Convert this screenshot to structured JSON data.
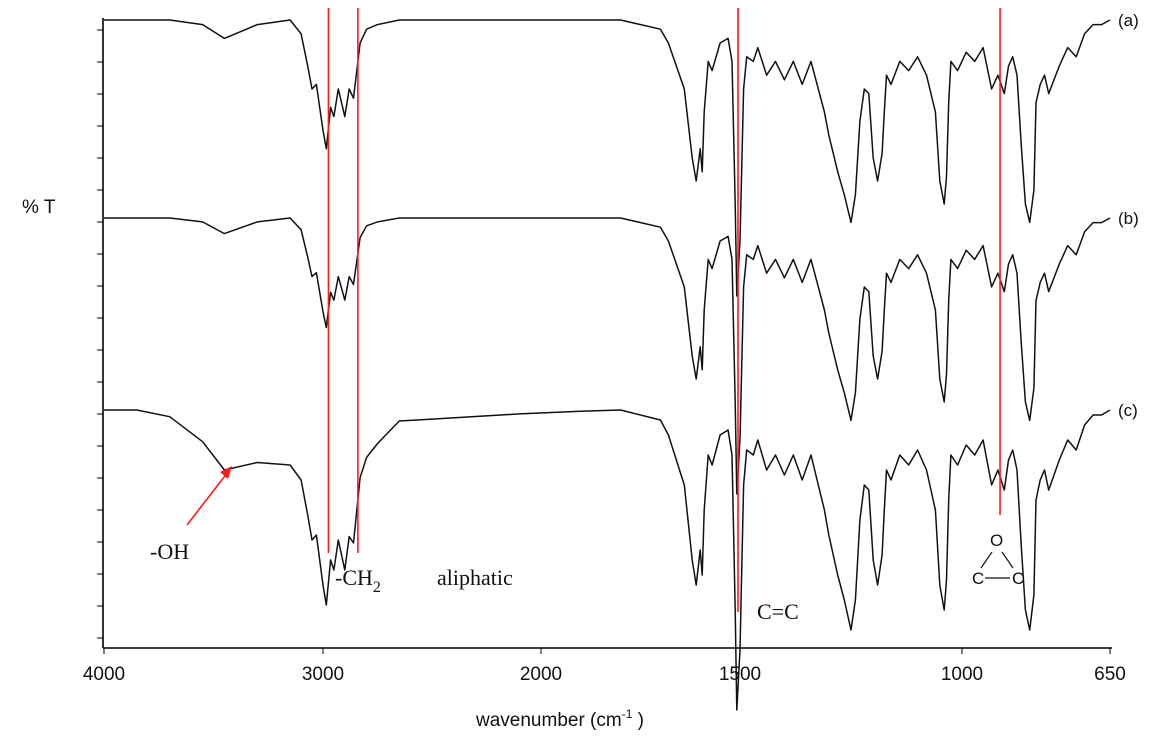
{
  "chart_data": {
    "type": "line",
    "ylabel": "% T",
    "xlabel_main": "wavenumber (cm",
    "xlabel_sup": "-1",
    "xlabel_close": " )",
    "xlim": [
      4000,
      650
    ],
    "x_reversed": true,
    "x_ticks": [
      4000,
      3000,
      2000,
      1500,
      1000,
      650
    ],
    "grid": false,
    "series": [
      {
        "name": "(a)",
        "x": [
          4000,
          3850,
          3700,
          3550,
          3450,
          3300,
          3150,
          3100,
          3070,
          3050,
          3030,
          3000,
          2985,
          2965,
          2950,
          2930,
          2900,
          2880,
          2860,
          2850,
          2830,
          2800,
          2750,
          2650,
          2500,
          2300,
          2100,
          1900,
          1800,
          1700,
          1680,
          1640,
          1620,
          1610,
          1600,
          1595,
          1590,
          1580,
          1570,
          1550,
          1530,
          1520,
          1512,
          1508,
          1500,
          1492,
          1485,
          1470,
          1460,
          1440,
          1420,
          1400,
          1380,
          1360,
          1340,
          1310,
          1300,
          1280,
          1265,
          1250,
          1240,
          1230,
          1220,
          1210,
          1200,
          1190,
          1180,
          1175,
          1170,
          1160,
          1140,
          1120,
          1100,
          1080,
          1060,
          1050,
          1040,
          1035,
          1030,
          1025,
          1010,
          990,
          970,
          950,
          930,
          915,
          900,
          890,
          880,
          870,
          860,
          850,
          840,
          830,
          825,
          815,
          805,
          795,
          770,
          750,
          730,
          710,
          690,
          670,
          650
        ],
        "y": [
          0,
          0,
          0,
          -1,
          -4,
          -1,
          0,
          -3,
          -10,
          -15,
          -14,
          -24,
          -28,
          -19,
          -21,
          -15,
          -21,
          -15,
          -17,
          -13,
          -5,
          -2,
          -1,
          0,
          0,
          0,
          0,
          0,
          0,
          -2,
          -5,
          -15,
          -30,
          -35,
          -28,
          -33,
          -20,
          -9,
          -11,
          -5,
          -4,
          -9,
          -40,
          -60,
          -48,
          -15,
          -8,
          -9,
          -6,
          -12,
          -9,
          -13,
          -9,
          -14,
          -9,
          -20,
          -25,
          -33,
          -38,
          -44,
          -38,
          -22,
          -15,
          -16,
          -30,
          -35,
          -29,
          -20,
          -12,
          -14,
          -9,
          -11,
          -8,
          -12,
          -20,
          -35,
          -40,
          -34,
          -18,
          -9,
          -11,
          -7,
          -9,
          -6,
          -15,
          -12,
          -16,
          -10,
          -8,
          -12,
          -27,
          -40,
          -44,
          -37,
          -18,
          -14,
          -12,
          -16,
          -10,
          -6,
          -8,
          -3,
          -1,
          -1,
          0
        ]
      },
      {
        "name": "(b)",
        "x": [
          4000,
          3850,
          3700,
          3550,
          3450,
          3300,
          3150,
          3100,
          3070,
          3050,
          3030,
          3000,
          2985,
          2965,
          2950,
          2930,
          2900,
          2880,
          2860,
          2850,
          2830,
          2800,
          2750,
          2650,
          2500,
          2300,
          2100,
          1900,
          1800,
          1700,
          1680,
          1640,
          1620,
          1610,
          1600,
          1595,
          1590,
          1580,
          1570,
          1550,
          1530,
          1520,
          1512,
          1508,
          1500,
          1492,
          1485,
          1470,
          1460,
          1440,
          1420,
          1400,
          1380,
          1360,
          1340,
          1310,
          1300,
          1280,
          1265,
          1250,
          1240,
          1230,
          1220,
          1210,
          1200,
          1190,
          1180,
          1175,
          1170,
          1160,
          1140,
          1120,
          1100,
          1080,
          1060,
          1050,
          1040,
          1035,
          1030,
          1025,
          1010,
          990,
          970,
          950,
          930,
          915,
          900,
          890,
          880,
          870,
          860,
          850,
          840,
          830,
          825,
          815,
          805,
          795,
          770,
          750,
          730,
          710,
          690,
          670,
          650
        ],
        "y": [
          0,
          0,
          0,
          -1,
          -4,
          -1,
          0,
          -3,
          -10,
          -15,
          -14,
          -24,
          -28,
          -19,
          -21,
          -15,
          -21,
          -15,
          -17,
          -13,
          -5,
          -2,
          -1,
          0,
          0,
          0,
          0,
          0,
          0,
          -2,
          -5,
          -15,
          -30,
          -35,
          -28,
          -33,
          -20,
          -9,
          -11,
          -5,
          -4,
          -9,
          -40,
          -60,
          -48,
          -15,
          -8,
          -9,
          -6,
          -12,
          -9,
          -13,
          -9,
          -14,
          -9,
          -20,
          -25,
          -33,
          -38,
          -44,
          -38,
          -22,
          -15,
          -16,
          -30,
          -35,
          -29,
          -20,
          -12,
          -14,
          -9,
          -11,
          -8,
          -12,
          -20,
          -35,
          -40,
          -34,
          -18,
          -9,
          -11,
          -7,
          -9,
          -6,
          -15,
          -12,
          -16,
          -10,
          -8,
          -12,
          -27,
          -40,
          -44,
          -37,
          -18,
          -14,
          -12,
          -16,
          -10,
          -6,
          -8,
          -3,
          -1,
          -1,
          0
        ]
      },
      {
        "name": "(c)",
        "x": [
          4000,
          3850,
          3700,
          3550,
          3450,
          3300,
          3150,
          3100,
          3070,
          3050,
          3030,
          3000,
          2985,
          2965,
          2950,
          2930,
          2900,
          2880,
          2860,
          2850,
          2830,
          2800,
          2750,
          2650,
          2500,
          2300,
          2100,
          1900,
          1800,
          1700,
          1680,
          1640,
          1620,
          1610,
          1600,
          1595,
          1590,
          1580,
          1570,
          1550,
          1530,
          1520,
          1512,
          1508,
          1500,
          1492,
          1485,
          1470,
          1460,
          1440,
          1420,
          1400,
          1380,
          1360,
          1340,
          1310,
          1300,
          1280,
          1265,
          1250,
          1240,
          1230,
          1220,
          1210,
          1200,
          1190,
          1180,
          1175,
          1170,
          1160,
          1140,
          1120,
          1100,
          1080,
          1060,
          1050,
          1040,
          1035,
          1030,
          1025,
          1010,
          990,
          970,
          950,
          930,
          915,
          900,
          890,
          880,
          870,
          860,
          850,
          840,
          830,
          825,
          815,
          805,
          795,
          770,
          750,
          730,
          710,
          690,
          670,
          650
        ],
        "y": [
          0,
          0,
          0,
          -1,
          -4,
          -1,
          0,
          -3,
          -10,
          -15,
          -14,
          -24,
          -28,
          -19,
          -21,
          -15,
          -21,
          -15,
          -17,
          -13,
          -5,
          -2,
          -1,
          0,
          0,
          0,
          0,
          0,
          0,
          -2,
          -5,
          -15,
          -30,
          -35,
          -28,
          -33,
          -20,
          -9,
          -11,
          -5,
          -4,
          -9,
          -40,
          -60,
          -48,
          -15,
          -8,
          -9,
          -6,
          -12,
          -9,
          -13,
          -9,
          -14,
          -9,
          -20,
          -25,
          -33,
          -38,
          -44,
          -38,
          -22,
          -15,
          -16,
          -30,
          -35,
          -29,
          -20,
          -12,
          -14,
          -9,
          -11,
          -8,
          -12,
          -20,
          -35,
          -40,
          -34,
          -18,
          -9,
          -11,
          -7,
          -9,
          -6,
          -15,
          -12,
          -16,
          -10,
          -8,
          -12,
          -27,
          -40,
          -44,
          -37,
          -18,
          -14,
          -12,
          -16,
          -10,
          -6,
          -8,
          -3,
          -1,
          -1,
          0
        ]
      }
    ],
    "markers": [
      {
        "x": 2975,
        "color": "#ff1a1a"
      },
      {
        "x": 2840,
        "color": "#ff1a1a"
      },
      {
        "x": 1505,
        "color": "#ff1a1a"
      },
      {
        "x": 910,
        "color": "#ff1a1a"
      }
    ],
    "annotations": {
      "oh": "-OH",
      "ch2": "-CH",
      "ch2_sub": "2",
      "aliphatic": "aliphatic",
      "cc": "C=C",
      "epoxide_o": "O",
      "epoxide_c1": "C",
      "epoxide_c2": "C"
    }
  }
}
